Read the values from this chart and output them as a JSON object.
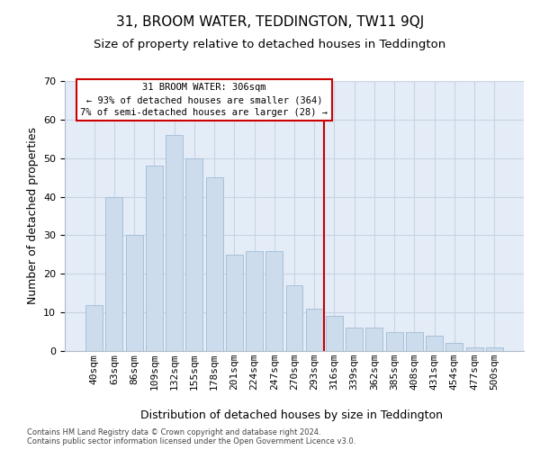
{
  "title": "31, BROOM WATER, TEDDINGTON, TW11 9QJ",
  "subtitle": "Size of property relative to detached houses in Teddington",
  "xlabel": "Distribution of detached houses by size in Teddington",
  "ylabel": "Number of detached properties",
  "categories": [
    "40sqm",
    "63sqm",
    "86sqm",
    "109sqm",
    "132sqm",
    "155sqm",
    "178sqm",
    "201sqm",
    "224sqm",
    "247sqm",
    "270sqm",
    "293sqm",
    "316sqm",
    "339sqm",
    "362sqm",
    "385sqm",
    "408sqm",
    "431sqm",
    "454sqm",
    "477sqm",
    "500sqm"
  ],
  "values": [
    12,
    40,
    30,
    48,
    56,
    50,
    45,
    25,
    26,
    26,
    17,
    11,
    9,
    6,
    6,
    5,
    5,
    4,
    2,
    1,
    1
  ],
  "bar_color": "#ccdcec",
  "bar_edge_color": "#a8c0d8",
  "vline_color": "#cc0000",
  "annotation_text": "31 BROOM WATER: 306sqm\n← 93% of detached houses are smaller (364)\n7% of semi-detached houses are larger (28) →",
  "annotation_box_color": "#ffffff",
  "annotation_box_edge_color": "#cc0000",
  "ylim": [
    0,
    70
  ],
  "yticks": [
    0,
    10,
    20,
    30,
    40,
    50,
    60,
    70
  ],
  "grid_color": "#c8d4e4",
  "background_color": "#e4ecf8",
  "footer": "Contains HM Land Registry data © Crown copyright and database right 2024.\nContains public sector information licensed under the Open Government Licence v3.0.",
  "title_fontsize": 11,
  "subtitle_fontsize": 9.5,
  "xlabel_fontsize": 9,
  "ylabel_fontsize": 9,
  "tick_fontsize": 8,
  "footer_fontsize": 6
}
